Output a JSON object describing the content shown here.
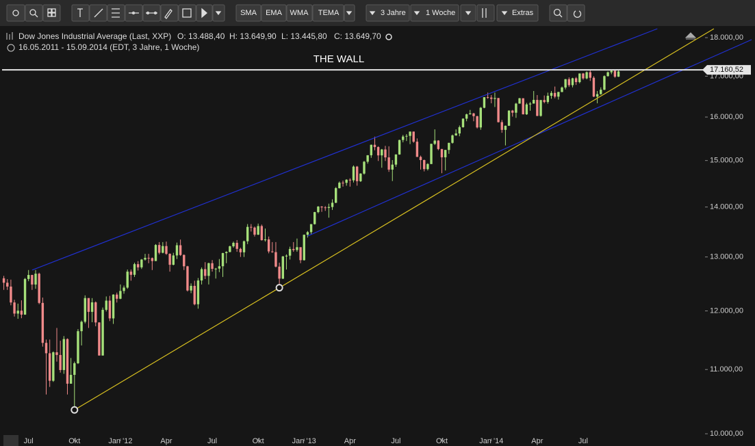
{
  "toolbar": [
    "SMA",
    "EMA",
    "WMA",
    "TEMA",
    "3 Jahre",
    "1 Woche",
    "Extras"
  ],
  "chart_data": {
    "type": "candlestick",
    "title": "Dow Jones Industrial Average (Last, XXP)",
    "quote": [
      "O: 13.488,40",
      "H: 13.649,90",
      "L: 13.445,80",
      "C: 13.649,70"
    ],
    "subtitle": "16.05.2011 - 15.09.2014 (EDT, 3 Jahre, 1 Woche)",
    "up_color": "#a6e07a",
    "down_color": "#f08a8a",
    "log_y": true,
    "xlim": [
      -0.5,
      198.5
    ],
    "xticks": [
      {
        "value": 7,
        "label": "Jul"
      },
      {
        "value": 20,
        "label": "Okt"
      },
      {
        "value": 33,
        "label": "Jan '12"
      },
      {
        "value": 46,
        "label": "Apr"
      },
      {
        "value": 59,
        "label": "Jul"
      },
      {
        "value": 72,
        "label": "Okt"
      },
      {
        "value": 85,
        "label": "Jan '13"
      },
      {
        "value": 98,
        "label": "Apr"
      },
      {
        "value": 111,
        "label": "Jul"
      },
      {
        "value": 124,
        "label": "Okt"
      },
      {
        "value": 138,
        "label": "Jan '14"
      },
      {
        "value": 151,
        "label": "Apr"
      },
      {
        "value": 164,
        "label": "Jul"
      }
    ],
    "ylim": [
      9890,
      18240
    ],
    "yticks": [
      {
        "value": 10000,
        "label": "10.000,00"
      },
      {
        "value": 11000,
        "label": "11.000,00"
      },
      {
        "value": 12000,
        "label": "12.000,00"
      },
      {
        "value": 13000,
        "label": "13.000,00"
      },
      {
        "value": 14000,
        "label": "14.000,00"
      },
      {
        "value": 15000,
        "label": "15.000,00"
      },
      {
        "value": 16000,
        "label": "16.000,00"
      },
      {
        "value": 17000,
        "label": "17.000,00"
      },
      {
        "value": 18000,
        "label": "18.000,00"
      }
    ],
    "hline": {
      "value": 17160.52,
      "label": "17.160,52",
      "text": "THE WALL",
      "color": "#e6e6e6"
    },
    "trendlines": [
      {
        "from": [
          8,
          12750
        ],
        "to": [
          185,
          18240
        ],
        "color": "#2030d0"
      },
      {
        "from": [
          86,
          13410
        ],
        "to": [
          212,
          17960
        ],
        "color": "#2030d0"
      },
      {
        "from": [
          20,
          10360
        ],
        "to": [
          201,
          18240
        ],
        "color": "#d8c020"
      }
    ],
    "markers": [
      [
        20,
        10360
      ],
      [
        78,
        12420
      ]
    ],
    "ohlc": [
      [
        12595,
        12640,
        12380,
        12512
      ],
      [
        12512,
        12580,
        12380,
        12441
      ],
      [
        12441,
        12570,
        12100,
        12151
      ],
      [
        12151,
        12200,
        11900,
        11952
      ],
      [
        11952,
        12130,
        11860,
        12004
      ],
      [
        12004,
        12190,
        11870,
        11934
      ],
      [
        11934,
        12600,
        11930,
        12582
      ],
      [
        12582,
        12750,
        12540,
        12657
      ],
      [
        12657,
        12660,
        12380,
        12479
      ],
      [
        12479,
        12750,
        12400,
        12681
      ],
      [
        12681,
        12700,
        12120,
        12143
      ],
      [
        12143,
        12240,
        11380,
        11444
      ],
      [
        11444,
        11500,
        10600,
        11269
      ],
      [
        11269,
        11500,
        10720,
        10818
      ],
      [
        10818,
        11300,
        10800,
        11285
      ],
      [
        11285,
        11700,
        11130,
        11240
      ],
      [
        11240,
        11480,
        10950,
        10992
      ],
      [
        10992,
        11560,
        10930,
        11509
      ],
      [
        11509,
        11520,
        10600,
        10771
      ],
      [
        10771,
        11190,
        10770,
        10913
      ],
      [
        10913,
        11130,
        10360,
        11103
      ],
      [
        11103,
        11680,
        11090,
        11644
      ],
      [
        11644,
        11830,
        11400,
        11808
      ],
      [
        11808,
        12280,
        11780,
        12231
      ],
      [
        12231,
        12230,
        11700,
        11983
      ],
      [
        11983,
        12230,
        11800,
        12153
      ],
      [
        12153,
        12170,
        11730,
        11796
      ],
      [
        11796,
        11800,
        11230,
        11231
      ],
      [
        11231,
        12060,
        11230,
        12019
      ],
      [
        12019,
        12260,
        11990,
        12184
      ],
      [
        12184,
        12270,
        11820,
        11867
      ],
      [
        11867,
        12300,
        11770,
        12294
      ],
      [
        12294,
        12330,
        12150,
        12218
      ],
      [
        12218,
        12480,
        12210,
        12360
      ],
      [
        12360,
        12460,
        12310,
        12422
      ],
      [
        12422,
        12760,
        12400,
        12720
      ],
      [
        12720,
        12760,
        12550,
        12660
      ],
      [
        12660,
        12890,
        12620,
        12862
      ],
      [
        12862,
        12920,
        12740,
        12801
      ],
      [
        12801,
        12960,
        12770,
        12950
      ],
      [
        12950,
        13060,
        12930,
        12983
      ],
      [
        12983,
        13060,
        12880,
        12978
      ],
      [
        12978,
        12990,
        12750,
        12922
      ],
      [
        12922,
        13250,
        12920,
        13233
      ],
      [
        13233,
        13290,
        13050,
        13081
      ],
      [
        13081,
        13290,
        13070,
        13212
      ],
      [
        13212,
        13300,
        13040,
        13060
      ],
      [
        13060,
        13070,
        12720,
        12850
      ],
      [
        12850,
        13080,
        12840,
        13029
      ],
      [
        13029,
        13280,
        12960,
        13228
      ],
      [
        13228,
        13340,
        13020,
        13038
      ],
      [
        13038,
        13050,
        12750,
        12821
      ],
      [
        12821,
        12830,
        12350,
        12369
      ],
      [
        12369,
        12500,
        12320,
        12454
      ],
      [
        12454,
        12550,
        12100,
        12119
      ],
      [
        12119,
        12600,
        12040,
        12554
      ],
      [
        12554,
        12800,
        12480,
        12767
      ],
      [
        12767,
        12900,
        12580,
        12640
      ],
      [
        12640,
        12890,
        12480,
        12880
      ],
      [
        12880,
        12940,
        12720,
        12772
      ],
      [
        12772,
        12790,
        12590,
        12777
      ],
      [
        12777,
        12960,
        12710,
        12822
      ],
      [
        12822,
        13080,
        12620,
        13075
      ],
      [
        13075,
        13110,
        12880,
        13096
      ],
      [
        13096,
        13220,
        13090,
        13207
      ],
      [
        13207,
        13300,
        13180,
        13275
      ],
      [
        13275,
        13330,
        13100,
        13157
      ],
      [
        13157,
        13180,
        13000,
        13090
      ],
      [
        13090,
        13320,
        13000,
        13306
      ],
      [
        13306,
        13650,
        13250,
        13593
      ],
      [
        13593,
        13650,
        13500,
        13579
      ],
      [
        13579,
        13600,
        13400,
        13437
      ],
      [
        13437,
        13660,
        13430,
        13610
      ],
      [
        13610,
        13640,
        13320,
        13328
      ],
      [
        13328,
        13560,
        13300,
        13343
      ],
      [
        13343,
        13400,
        13070,
        13107
      ],
      [
        13107,
        13290,
        13080,
        13093
      ],
      [
        13093,
        13290,
        12800,
        12815
      ],
      [
        12815,
        12890,
        12470,
        12588
      ],
      [
        12588,
        13020,
        12580,
        13010
      ],
      [
        13010,
        13050,
        12760,
        13025
      ],
      [
        13025,
        13200,
        12950,
        13155
      ],
      [
        13155,
        13290,
        13100,
        13135
      ],
      [
        13135,
        13360,
        13100,
        13190
      ],
      [
        13190,
        13190,
        12880,
        12938
      ],
      [
        12938,
        13440,
        12930,
        13435
      ],
      [
        13435,
        13510,
        13380,
        13488
      ],
      [
        13488,
        13650,
        13440,
        13649
      ],
      [
        13649,
        13900,
        13640,
        13895
      ],
      [
        13895,
        14020,
        13870,
        14009
      ],
      [
        14009,
        14020,
        13900,
        13992
      ],
      [
        13992,
        14020,
        13920,
        13981
      ],
      [
        13981,
        14070,
        13780,
        14000
      ],
      [
        14000,
        14160,
        13940,
        14089
      ],
      [
        14089,
        14420,
        14080,
        14397
      ],
      [
        14397,
        14540,
        14390,
        14514
      ],
      [
        14514,
        14560,
        14430,
        14512
      ],
      [
        14512,
        14590,
        14450,
        14578
      ],
      [
        14578,
        14610,
        14430,
        14565
      ],
      [
        14565,
        14890,
        14520,
        14865
      ],
      [
        14865,
        14880,
        14450,
        14547
      ],
      [
        14547,
        14720,
        14530,
        14712
      ],
      [
        14712,
        14990,
        14690,
        14973
      ],
      [
        14973,
        15120,
        14930,
        15118
      ],
      [
        15118,
        15360,
        15060,
        15354
      ],
      [
        15354,
        15540,
        15230,
        15303
      ],
      [
        15303,
        15320,
        14990,
        15115
      ],
      [
        15115,
        15260,
        14840,
        15248
      ],
      [
        15248,
        15330,
        14990,
        15070
      ],
      [
        15070,
        15320,
        14750,
        14799
      ],
      [
        14799,
        15010,
        14550,
        14909
      ],
      [
        14909,
        15140,
        14860,
        15135
      ],
      [
        15135,
        15470,
        15130,
        15464
      ],
      [
        15464,
        15580,
        15410,
        15543
      ],
      [
        15543,
        15600,
        15440,
        15558
      ],
      [
        15558,
        15660,
        15370,
        15658
      ],
      [
        15658,
        15660,
        15400,
        15425
      ],
      [
        15425,
        15500,
        15080,
        15081
      ],
      [
        15081,
        15110,
        14800,
        15010
      ],
      [
        15010,
        15020,
        14760,
        14810
      ],
      [
        14810,
        14940,
        14780,
        14922
      ],
      [
        14922,
        15380,
        14920,
        15376
      ],
      [
        15376,
        15710,
        15350,
        15451
      ],
      [
        15451,
        15460,
        15230,
        15258
      ],
      [
        15258,
        15260,
        14720,
        15072
      ],
      [
        15072,
        15240,
        14780,
        15237
      ],
      [
        15237,
        15400,
        15150,
        15399
      ],
      [
        15399,
        15590,
        15380,
        15570
      ],
      [
        15570,
        15710,
        15560,
        15615
      ],
      [
        15615,
        15800,
        15550,
        15761
      ],
      [
        15761,
        15970,
        15750,
        15961
      ],
      [
        15961,
        16080,
        15900,
        16064
      ],
      [
        16064,
        16170,
        16060,
        16086
      ],
      [
        16086,
        16100,
        15900,
        16020
      ],
      [
        16020,
        16030,
        15730,
        15755
      ],
      [
        15755,
        16240,
        15700,
        16221
      ],
      [
        16221,
        16480,
        16210,
        16478
      ],
      [
        16478,
        16590,
        16440,
        16469
      ],
      [
        16469,
        16530,
        16330,
        16437
      ],
      [
        16437,
        16590,
        16240,
        16458
      ],
      [
        16458,
        16460,
        15870,
        15879
      ],
      [
        15879,
        15930,
        15630,
        15698
      ],
      [
        15698,
        15800,
        15340,
        15794
      ],
      [
        15794,
        16160,
        15790,
        16154
      ],
      [
        16154,
        16170,
        16010,
        16103
      ],
      [
        16103,
        16340,
        15980,
        16321
      ],
      [
        16321,
        16460,
        16320,
        16452
      ],
      [
        16452,
        16450,
        16060,
        16065
      ],
      [
        16065,
        16340,
        16050,
        16302
      ],
      [
        16302,
        16360,
        16150,
        16323
      ],
      [
        16323,
        16630,
        16320,
        16412
      ],
      [
        16412,
        16530,
        16020,
        16027
      ],
      [
        16027,
        16410,
        16010,
        16408
      ],
      [
        16408,
        16520,
        16330,
        16361
      ],
      [
        16361,
        16590,
        16320,
        16512
      ],
      [
        16512,
        16630,
        16440,
        16583
      ],
      [
        16583,
        16740,
        16450,
        16491
      ],
      [
        16491,
        16610,
        16420,
        16606
      ],
      [
        16606,
        16740,
        16600,
        16717
      ],
      [
        16717,
        16930,
        16670,
        16924
      ],
      [
        16924,
        16970,
        16730,
        16775
      ],
      [
        16775,
        16960,
        16720,
        16947
      ],
      [
        16947,
        16980,
        16780,
        16851
      ],
      [
        16851,
        17070,
        16820,
        17068
      ],
      [
        17068,
        17080,
        16910,
        16944
      ],
      [
        16944,
        17120,
        16920,
        17100
      ],
      [
        17100,
        17150,
        16880,
        16960
      ],
      [
        16960,
        17000,
        16480,
        16493
      ],
      [
        16493,
        16630,
        16330,
        16553
      ],
      [
        16553,
        16720,
        16540,
        16662
      ],
      [
        16662,
        17020,
        16650,
        17001
      ],
      [
        17001,
        17120,
        16990,
        17098
      ],
      [
        17098,
        17150,
        17050,
        17137
      ],
      [
        17137,
        17160,
        16960,
        16987
      ],
      [
        16987,
        17160,
        16980,
        17120
      ]
    ]
  }
}
